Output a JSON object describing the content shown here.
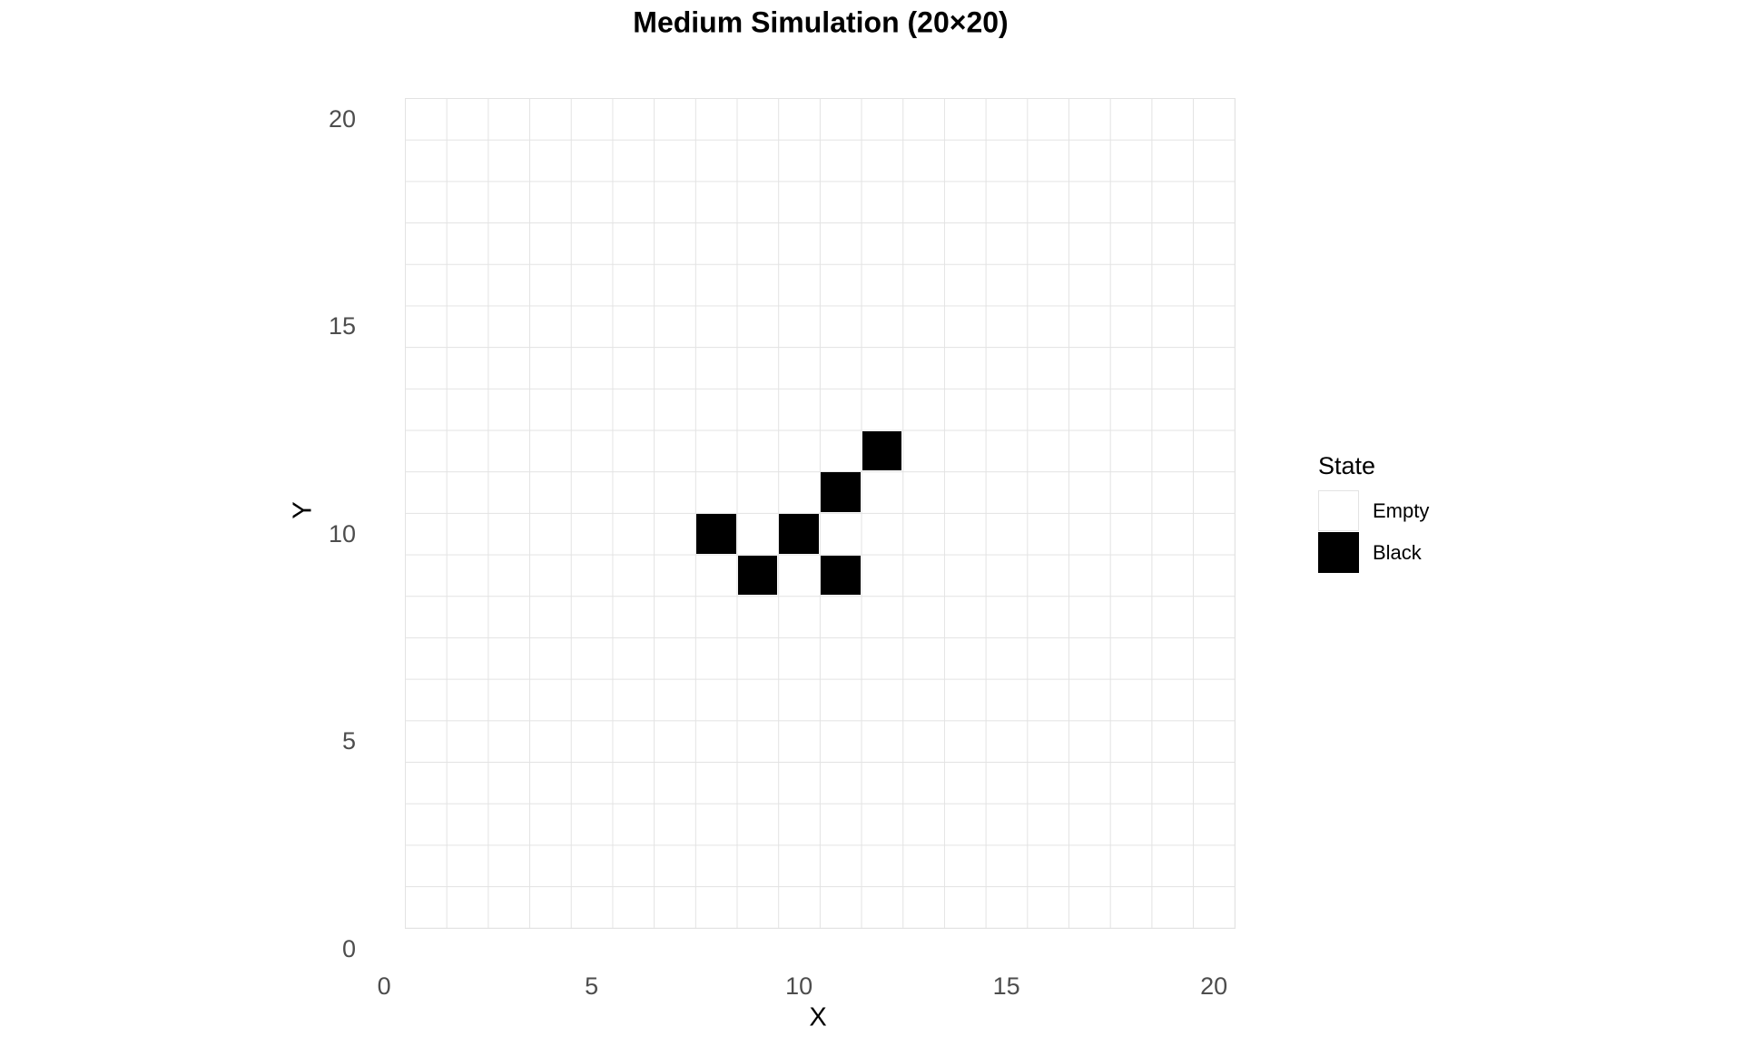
{
  "chart_data": {
    "type": "heatmap",
    "title": "Medium Simulation (20×20)",
    "xlabel": "X",
    "ylabel": "Y",
    "grid": {
      "cols": 20,
      "rows": 20
    },
    "xlim": [
      0.5,
      20.5
    ],
    "ylim": [
      0.5,
      20.5
    ],
    "x_ticks": [
      0,
      5,
      10,
      15,
      20
    ],
    "y_ticks": [
      0,
      5,
      10,
      15,
      20
    ],
    "grid_on": true,
    "legend_position": "right",
    "cell_states": [
      "Empty",
      "Black"
    ],
    "black_cells": [
      {
        "x": 8,
        "y": 10
      },
      {
        "x": 9,
        "y": 9
      },
      {
        "x": 10,
        "y": 10
      },
      {
        "x": 11,
        "y": 9
      },
      {
        "x": 11,
        "y": 11
      },
      {
        "x": 12,
        "y": 12
      }
    ]
  },
  "legend": {
    "title": "State",
    "entries": [
      {
        "label": "Empty",
        "color": "#FFFFFF"
      },
      {
        "label": "Black",
        "color": "#000000"
      }
    ]
  },
  "colors": {
    "background": "#FFFFFF",
    "grid_line": "#E3E3E3",
    "tick_label": "#4D4D4D",
    "title_text": "#000000",
    "black_cell": "#000000",
    "empty_cell": "#FFFFFF",
    "empty_swatch_border": "#E3E3E3"
  }
}
